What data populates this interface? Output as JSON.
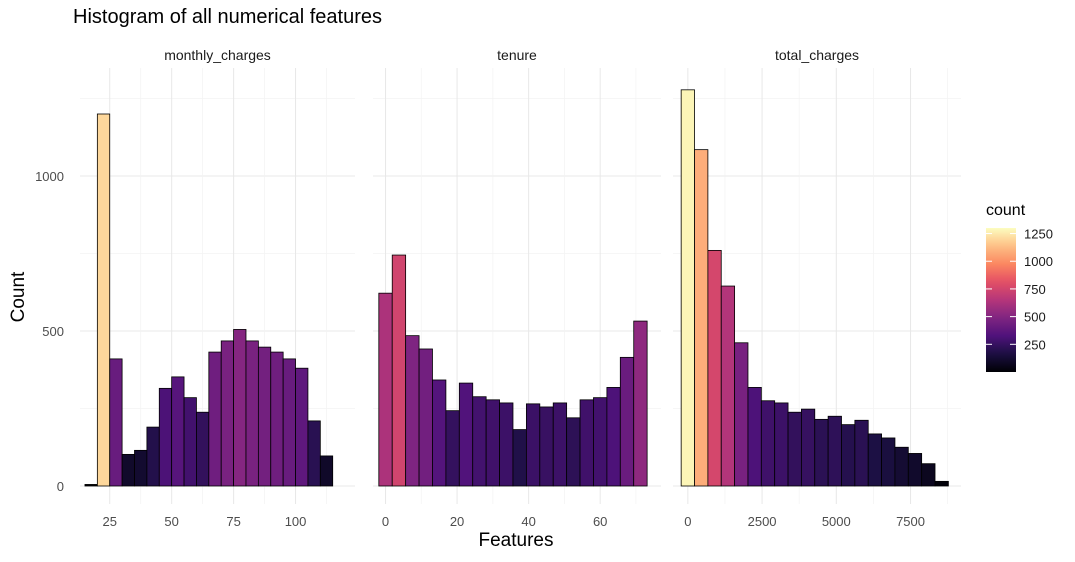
{
  "chart_data": {
    "type": "bar",
    "title": "Histogram of all numerical features",
    "xlabel": "Features",
    "ylabel": "Count",
    "grid": true,
    "legend": {
      "title": "count",
      "placement": "right",
      "ticks": [
        "1250",
        "1000",
        "750",
        "500",
        "250"
      ],
      "tick_values": [
        1250,
        1000,
        750,
        500,
        250
      ],
      "range": [
        0,
        1300
      ]
    },
    "ylim": [
      0,
      1300
    ],
    "yticks": [
      "0",
      "500",
      "1000"
    ],
    "ytick_values": [
      0,
      500,
      1000
    ],
    "facets": [
      {
        "name": "monthly_charges",
        "xlim": [
          13,
          124
        ],
        "xticks": [
          "25",
          "50",
          "75",
          "100"
        ],
        "xtick_values": [
          25,
          50,
          75,
          100
        ],
        "bin_width": 5,
        "bin_starts": [
          15,
          20,
          25,
          30,
          35,
          40,
          45,
          50,
          55,
          60,
          65,
          70,
          75,
          80,
          85,
          90,
          95,
          100,
          105,
          110,
          115
        ],
        "values": [
          5,
          1200,
          410,
          102,
          115,
          190,
          315,
          352,
          285,
          238,
          432,
          468,
          505,
          468,
          448,
          432,
          410,
          380,
          210,
          97,
          0
        ]
      },
      {
        "name": "tenure",
        "xlim": [
          -3.5,
          77
        ],
        "xticks": [
          "0",
          "20",
          "40",
          "60"
        ],
        "xtick_values": [
          0,
          20,
          40,
          60
        ],
        "bin_width": 3.75,
        "bin_starts": [
          -1.875,
          1.875,
          5.625,
          9.375,
          13.125,
          16.875,
          20.625,
          24.375,
          28.125,
          31.875,
          35.625,
          39.375,
          43.125,
          46.875,
          50.625,
          54.375,
          58.125,
          61.875,
          65.625,
          69.375
        ],
        "values": [
          622,
          745,
          485,
          442,
          342,
          243,
          332,
          288,
          278,
          268,
          182,
          265,
          255,
          268,
          220,
          278,
          285,
          318,
          415,
          532
        ]
      },
      {
        "name": "total_charges",
        "xlim": [
          -500,
          9200
        ],
        "xticks": [
          "0",
          "2500",
          "5000",
          "7500"
        ],
        "xtick_values": [
          0,
          2500,
          5000,
          7500
        ],
        "bin_width": 450,
        "bin_starts": [
          -225,
          225,
          675,
          1125,
          1575,
          2025,
          2475,
          2925,
          3375,
          3825,
          4275,
          4725,
          5175,
          5625,
          6075,
          6525,
          6975,
          7425,
          7875,
          8325
        ],
        "values": [
          1278,
          1085,
          760,
          645,
          462,
          318,
          275,
          268,
          238,
          248,
          215,
          225,
          198,
          212,
          168,
          155,
          125,
          105,
          72,
          15
        ]
      }
    ]
  }
}
